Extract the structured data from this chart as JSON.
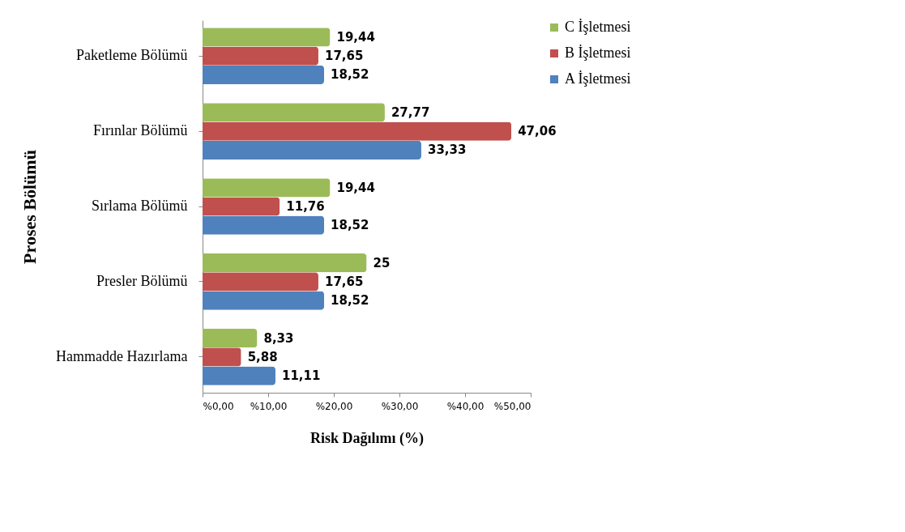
{
  "chart_data": {
    "type": "bar",
    "orientation": "horizontal",
    "xlabel": "Risk Dağılımı (%)",
    "ylabel": "Proses Bölümü",
    "categories": [
      "Paketleme Bölümü",
      "Fırınlar Bölümü",
      "Sırlama Bölümü",
      "Presler Bölümü",
      "Hammadde Hazırlama"
    ],
    "series": [
      {
        "name": "C İşletmesi",
        "color": "#9bbb59",
        "values": [
          19.44,
          27.77,
          19.44,
          25,
          8.33
        ],
        "value_labels": [
          "19,44",
          "27,77",
          "19,44",
          "25",
          "8,33"
        ]
      },
      {
        "name": "B İşletmesi",
        "color": "#c0504d",
        "values": [
          17.65,
          47.06,
          11.76,
          17.65,
          5.88
        ],
        "value_labels": [
          "17,65",
          "47,06",
          "11,76",
          "17,65",
          "5,88"
        ]
      },
      {
        "name": "A İşletmesi",
        "color": "#4f81bd",
        "values": [
          18.52,
          33.33,
          18.52,
          18.52,
          11.11
        ],
        "value_labels": [
          "18,52",
          "33,33",
          "18,52",
          "18,52",
          "11,11"
        ]
      }
    ],
    "xlim": [
      0,
      50
    ],
    "xticks": [
      {
        "value": 0,
        "label": "%0,00"
      },
      {
        "value": 10,
        "label": "%10,00"
      },
      {
        "value": 20,
        "label": "%20,00"
      },
      {
        "value": 30,
        "label": "%30,00"
      },
      {
        "value": 40,
        "label": "%40,00"
      },
      {
        "value": 50,
        "label": "%50,00"
      }
    ],
    "grid": false,
    "legend": "right"
  }
}
